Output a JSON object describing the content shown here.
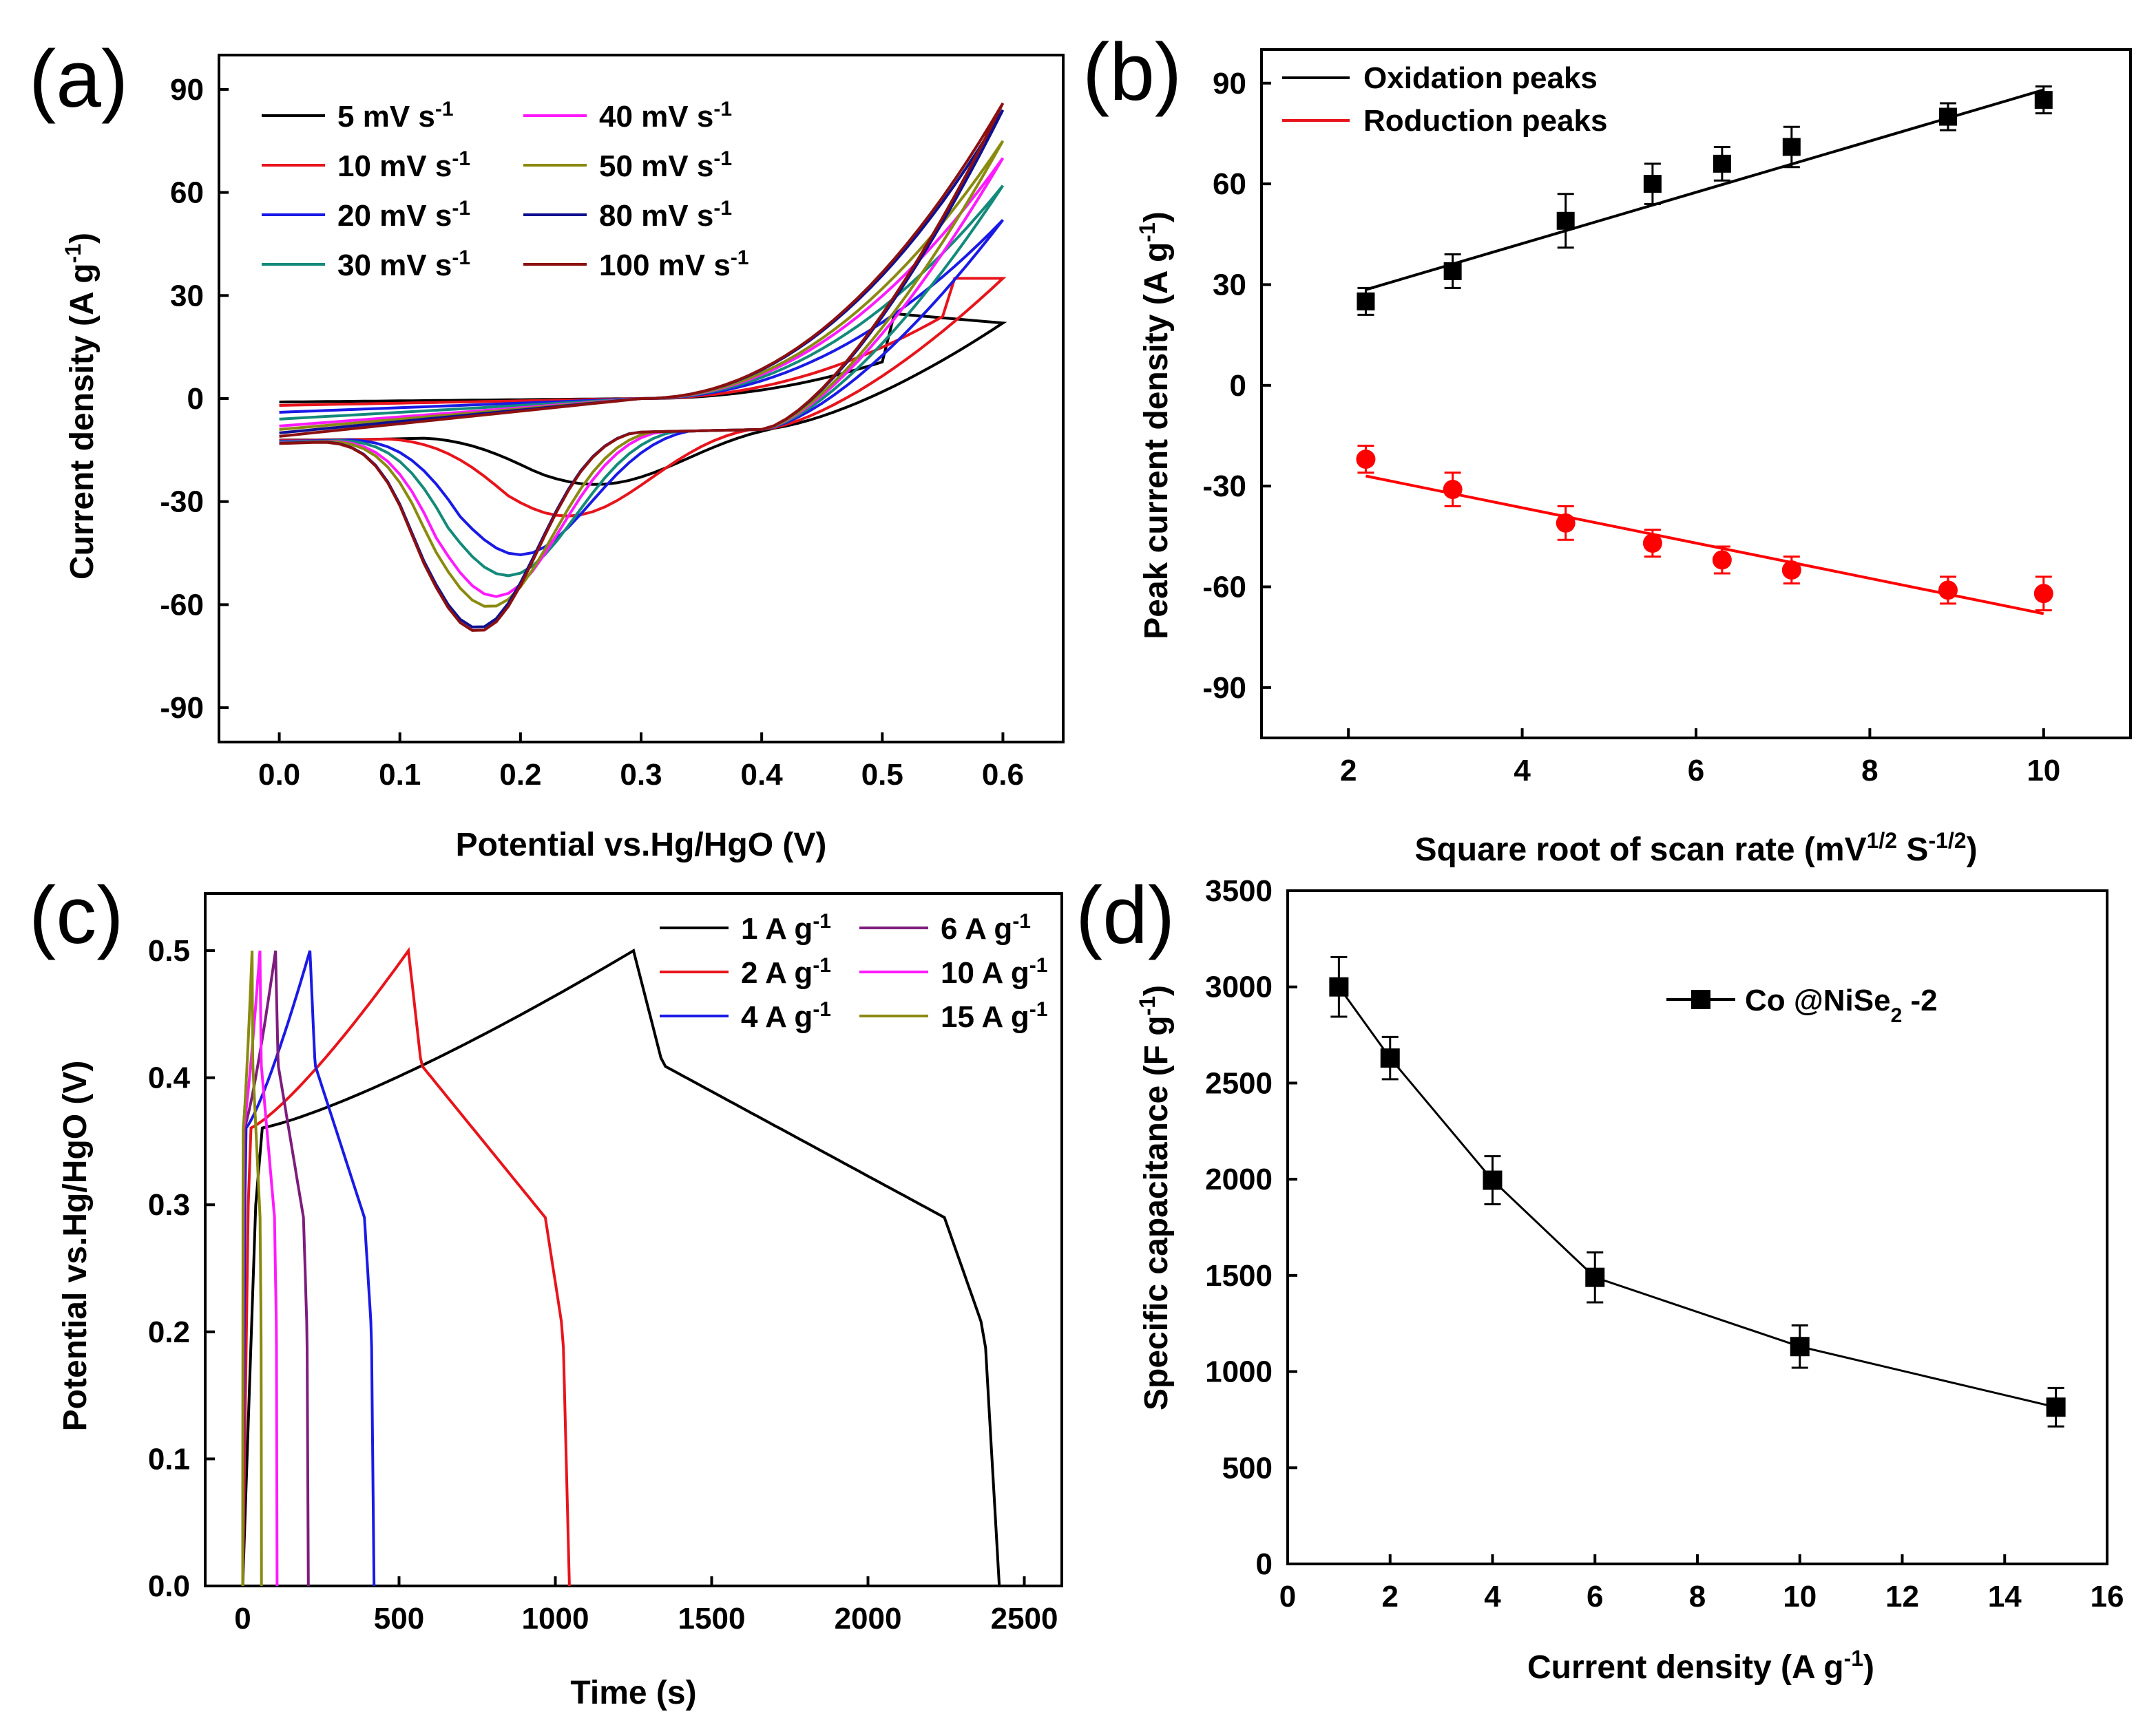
{
  "colors": {
    "black": "#000000",
    "red": "#e8141c",
    "blue": "#1a1ae6",
    "teal": "#138a7a",
    "magenta": "#ff1aff",
    "olive": "#8a8a10",
    "navy": "#101090",
    "maroon": "#8c1010",
    "purple": "#7d1d7d",
    "point_red": "#ff0000"
  },
  "chart_data": [
    {
      "panel": "(a)",
      "type": "line",
      "xlabel": "Potential vs.Hg/HgO (V)",
      "ylabel": "Current density (A g-1)",
      "xlim": [
        -0.05,
        0.65
      ],
      "ylim": [
        -100,
        100
      ],
      "xticks": [
        "0.0",
        "0.1",
        "0.2",
        "0.3",
        "0.4",
        "0.5",
        "0.6"
      ],
      "yticks": [
        "-90",
        "-60",
        "-30",
        "0",
        "30",
        "60",
        "90"
      ],
      "series": [
        {
          "name": "5 mV s-1",
          "color": "black",
          "scan": 5,
          "peak_ox": 25,
          "peak_red": -24,
          "ox_pos": 0.5,
          "red_pos": 0.265,
          "end_hi": 22,
          "end_lo": -1
        },
        {
          "name": "10 mV s-1",
          "color": "red",
          "scan": 10,
          "peak_ox": 35,
          "peak_red": -33,
          "ox_pos": 0.55,
          "red_pos": 0.24,
          "end_hi": 35,
          "end_lo": -2
        },
        {
          "name": "20 mV s-1",
          "color": "blue",
          "scan": 20,
          "peak_ox": 52,
          "peak_red": -44,
          "ox_pos": 0.6,
          "red_pos": 0.2,
          "end_hi": 52,
          "end_lo": -4
        },
        {
          "name": "30 mV s-1",
          "color": "teal",
          "scan": 30,
          "peak_ox": 62,
          "peak_red": -50,
          "ox_pos": 0.6,
          "red_pos": 0.19,
          "end_hi": 62,
          "end_lo": -6
        },
        {
          "name": "40 mV s-1",
          "color": "magenta",
          "scan": 40,
          "peak_ox": 70,
          "peak_red": -56,
          "ox_pos": 0.6,
          "red_pos": 0.18,
          "end_hi": 70,
          "end_lo": -8
        },
        {
          "name": "50 mV s-1",
          "color": "olive",
          "scan": 50,
          "peak_ox": 75,
          "peak_red": -59,
          "ox_pos": 0.6,
          "red_pos": 0.175,
          "end_hi": 75,
          "end_lo": -9
        },
        {
          "name": "80 mV s-1",
          "color": "navy",
          "scan": 80,
          "peak_ox": 84,
          "peak_red": -65,
          "ox_pos": 0.6,
          "red_pos": 0.165,
          "end_hi": 84,
          "end_lo": -10
        },
        {
          "name": "100 mV s-1",
          "color": "maroon",
          "scan": 100,
          "peak_ox": 86,
          "peak_red": -66,
          "ox_pos": 0.6,
          "red_pos": 0.165,
          "end_hi": 86,
          "end_lo": -11
        }
      ],
      "legend": [
        {
          "value": "5 mV s",
          "sup": "-1",
          "color": "black"
        },
        {
          "value": "10 mV s",
          "sup": "-1",
          "color": "red"
        },
        {
          "value": "20 mV s",
          "sup": "-1",
          "color": "blue"
        },
        {
          "value": "30 mV s",
          "sup": "-1",
          "color": "teal"
        },
        {
          "value": "40 mV s",
          "sup": "-1",
          "color": "magenta"
        },
        {
          "value": "50 mV s",
          "sup": "-1",
          "color": "olive"
        },
        {
          "value": "80 mV s",
          "sup": "-1",
          "color": "navy"
        },
        {
          "value": "100 mV s",
          "sup": "-1",
          "color": "maroon"
        }
      ]
    },
    {
      "panel": "(b)",
      "type": "scatter",
      "xlabel": "Square root of scan rate (mV1/2 S-1/2)",
      "ylabel": "Peak current density (A g-1)",
      "xlim": [
        1,
        11
      ],
      "ylim": [
        -105,
        100
      ],
      "xticks": [
        "2",
        "4",
        "6",
        "8",
        "10"
      ],
      "yticks": [
        "-90",
        "-60",
        "-30",
        "0",
        "30",
        "60",
        "90"
      ],
      "series": [
        {
          "name": "Oxidation peaks",
          "color": "black",
          "marker": "square",
          "x": [
            2.2,
            3.2,
            4.5,
            5.5,
            6.3,
            7.1,
            8.9,
            10.0
          ],
          "y": [
            25,
            34,
            49,
            60,
            66,
            71,
            80,
            85
          ],
          "err": [
            4,
            5,
            8,
            6,
            5,
            6,
            4,
            4
          ],
          "fit": [
            [
              2.2,
              28.5
            ],
            [
              10.0,
              88
            ]
          ]
        },
        {
          "name": "Roduction peaks",
          "color": "point_red",
          "marker": "circle",
          "x": [
            2.2,
            3.2,
            4.5,
            5.5,
            6.3,
            7.1,
            8.9,
            10.0
          ],
          "y": [
            -22,
            -31,
            -41,
            -47,
            -52,
            -55,
            -61,
            -62
          ],
          "err": [
            4,
            5,
            5,
            4,
            4,
            4,
            4,
            5
          ],
          "fit": [
            [
              2.2,
              -27
            ],
            [
              10.0,
              -68
            ]
          ]
        }
      ]
    },
    {
      "panel": "(c)",
      "type": "line",
      "xlabel": "Time (s)",
      "ylabel": "Potential vs.Hg/HgO (V)",
      "xlim": [
        -120,
        2620
      ],
      "ylim": [
        0,
        0.545
      ],
      "xticks": [
        "0",
        "500",
        "1000",
        "1500",
        "2000",
        "2500"
      ],
      "yticks": [
        "0.0",
        "0.1",
        "0.2",
        "0.3",
        "0.4",
        "0.5"
      ],
      "series": [
        {
          "name": "1 A g-1",
          "color": "black",
          "charge_end": 1250,
          "discharge_end": 2420
        },
        {
          "name": "2 A g-1",
          "color": "red",
          "charge_end": 530,
          "discharge_end": 1045
        },
        {
          "name": "4 A g-1",
          "color": "blue",
          "charge_end": 215,
          "discharge_end": 420
        },
        {
          "name": "6 A g-1",
          "color": "purple",
          "charge_end": 105,
          "discharge_end": 210
        },
        {
          "name": "10 A g-1",
          "color": "magenta",
          "charge_end": 55,
          "discharge_end": 110
        },
        {
          "name": "15 A g-1",
          "color": "olive",
          "charge_end": 30,
          "discharge_end": 60
        }
      ],
      "legend": [
        {
          "value": "1 A g",
          "sup": "-1",
          "color": "black"
        },
        {
          "value": "2 A g",
          "sup": "-1",
          "color": "red"
        },
        {
          "value": "4 A g",
          "sup": "-1",
          "color": "blue"
        },
        {
          "value": "6 A g",
          "sup": "-1",
          "color": "purple"
        },
        {
          "value": "10 A g",
          "sup": "-1",
          "color": "magenta"
        },
        {
          "value": "15 A g",
          "sup": "-1",
          "color": "olive"
        }
      ]
    },
    {
      "panel": "(d)",
      "type": "line",
      "xlabel": "Current density (A g-1)",
      "ylabel": "Specific capacitance (F g-1)",
      "xlim": [
        0,
        16
      ],
      "ylim": [
        0,
        3500
      ],
      "xticks": [
        "0",
        "2",
        "4",
        "6",
        "8",
        "10",
        "12",
        "14",
        "16"
      ],
      "yticks": [
        "0",
        "500",
        "1000",
        "1500",
        "2000",
        "2500",
        "3000",
        "3500"
      ],
      "series": [
        {
          "name": "Co @NiSe2 -2",
          "color": "black",
          "marker": "square",
          "x": [
            1,
            2,
            4,
            6,
            10,
            15
          ],
          "y": [
            3000,
            2630,
            1995,
            1490,
            1130,
            815
          ],
          "err": [
            155,
            110,
            125,
            130,
            110,
            100
          ]
        }
      ],
      "legend_label": "Co @NiSe",
      "legend_sub": "2",
      "legend_suffix": " -2"
    }
  ]
}
